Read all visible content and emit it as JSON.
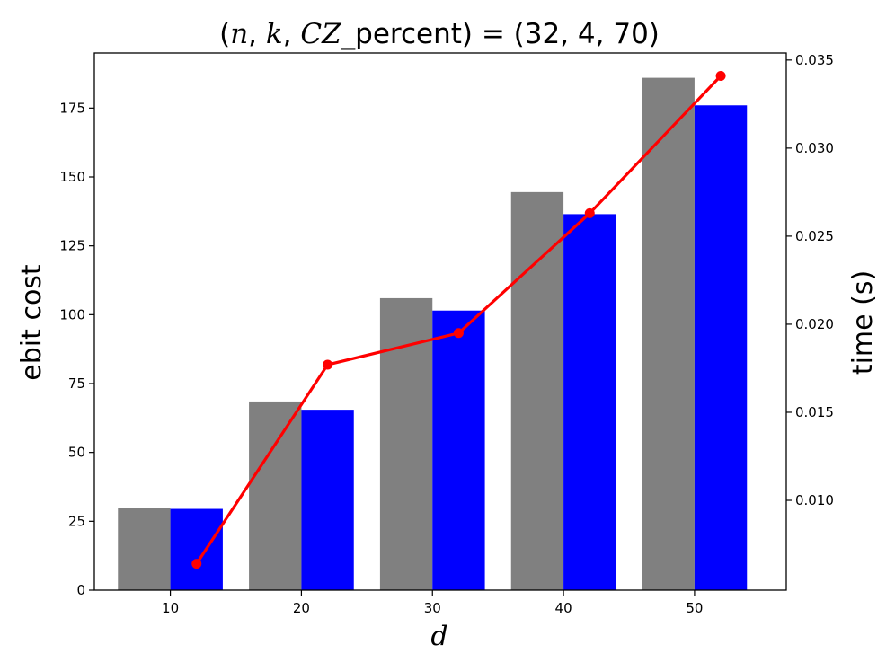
{
  "chart_data": {
    "type": "bar",
    "title": {
      "prefix": "(",
      "n": "n",
      "sep1": ", ",
      "k": "k",
      "sep2": ", ",
      "cz": "CZ",
      "suffix_label": "_percent) = (32, 4, 70)"
    },
    "xlabel": "d",
    "ylabel": "ebit cost",
    "y2label": "time (s)",
    "categories": [
      "10",
      "20",
      "30",
      "40",
      "50"
    ],
    "ylim": [
      0,
      195
    ],
    "y2lim": [
      0.0049,
      0.0354
    ],
    "yticks": [
      0,
      25,
      50,
      75,
      100,
      125,
      150,
      175
    ],
    "y2ticks": [
      0.01,
      0.015,
      0.02,
      0.025,
      0.03,
      0.035
    ],
    "series": [
      {
        "values": [
          30,
          68.5,
          106,
          144.5,
          186
        ],
        "color": "#808080"
      },
      {
        "values": [
          29.5,
          65.5,
          101.5,
          136.5,
          176
        ],
        "color": "#0000ff"
      }
    ],
    "line_series": {
      "x": [
        12,
        22,
        32,
        42,
        52
      ],
      "values": [
        0.0064,
        0.0177,
        0.0195,
        0.0263,
        0.0341
      ],
      "color": "#ff0000",
      "axis": "right"
    },
    "grid": false
  }
}
